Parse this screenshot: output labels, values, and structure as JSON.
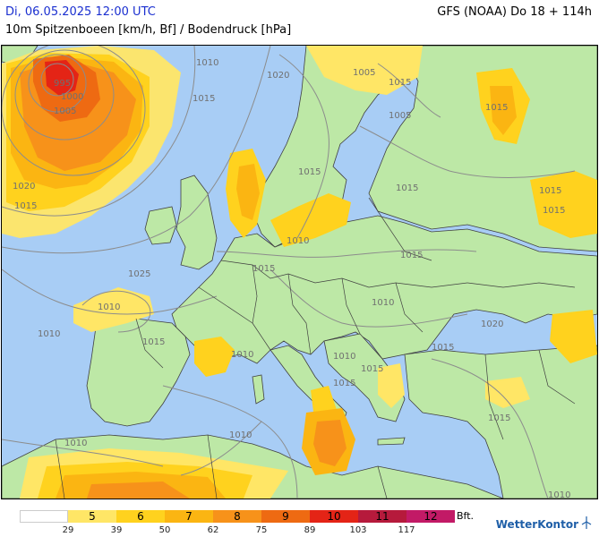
{
  "header": {
    "datetime": "Di, 06.05.2025 12:00 UTC",
    "subtitle": "10m Spitzenboeen [km/h, Bf] / Bodendruck [hPa]",
    "model_run": "GFS (NOAA) Do 18 + 114h"
  },
  "isobars": [
    "1020",
    "1010",
    "1015",
    "1005",
    "1015",
    "1015",
    "1020",
    "1005",
    "1015",
    "1025",
    "1010",
    "1015",
    "1015",
    "1015",
    "1010",
    "1010",
    "1015",
    "1015",
    "1020",
    "1010",
    "1015",
    "1015",
    "1010",
    "1010",
    "1015",
    "1010",
    "995",
    "1000",
    "1005",
    "1010",
    "1015",
    "1015",
    "1015",
    "1010"
  ],
  "legend": {
    "bft_label": "Bft.",
    "classes": [
      {
        "bf": "",
        "color": "#ffffff"
      },
      {
        "bf": "5",
        "color": "#ffe666"
      },
      {
        "bf": "6",
        "color": "#ffd21e"
      },
      {
        "bf": "7",
        "color": "#fbb512"
      },
      {
        "bf": "8",
        "color": "#f7921a"
      },
      {
        "bf": "9",
        "color": "#ee6a12"
      },
      {
        "bf": "10",
        "color": "#e42416"
      },
      {
        "bf": "11",
        "color": "#b61a3c"
      },
      {
        "bf": "12",
        "color": "#c21a66"
      }
    ],
    "kmh_ticks": [
      "29",
      "39",
      "50",
      "62",
      "75",
      "89",
      "103",
      "117"
    ]
  },
  "brand": {
    "name": "WetterKontor",
    "icon": "wind-turbine-icon"
  },
  "colors": {
    "sea": "#a8cdf5",
    "land_calm": "#bde8a6",
    "bf5": "#ffe666",
    "bf6": "#ffd21e",
    "bf7": "#fbb512",
    "bf8": "#f7921a",
    "bf9": "#ee6a12",
    "bf10": "#e42416",
    "isobar": "#8c8c8c",
    "border": "#404040"
  }
}
